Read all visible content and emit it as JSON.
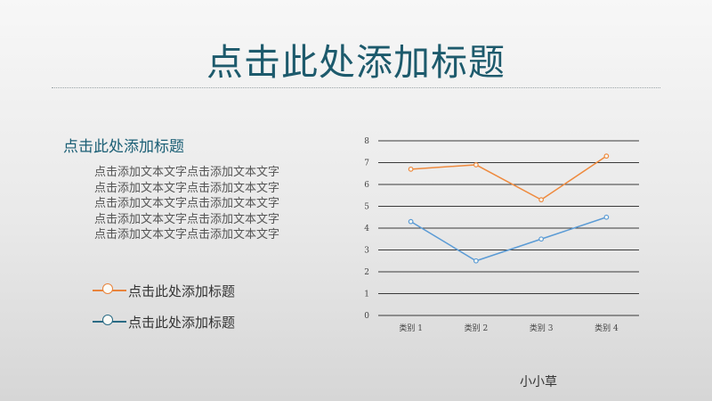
{
  "slide": {
    "title": "点击此处添加标题",
    "subheading": "点击此处添加标题",
    "body_lines": [
      "点击添加文本文字点击添加文本文字",
      "点击添加文本文字点击添加文本文字",
      "点击添加文本文字点击添加文本文字",
      "点击添加文本文字点击添加文本文字",
      "点击添加文本文字点击添加文本文字"
    ],
    "legend": [
      {
        "label": "点击此处添加标题",
        "color": "#e9843c"
      },
      {
        "label": "点击此处添加标题",
        "color": "#2a6b85"
      }
    ],
    "author": "小小草"
  },
  "chart_data": {
    "type": "line",
    "categories": [
      "类别 1",
      "类别 2",
      "类别 3",
      "类别 4"
    ],
    "series": [
      {
        "values": [
          6.7,
          6.9,
          5.3,
          7.3
        ],
        "color": "#ee8a3e"
      },
      {
        "values": [
          4.3,
          2.5,
          3.5,
          4.5
        ],
        "color": "#5b9bd5"
      }
    ],
    "ylim": [
      0,
      8
    ],
    "yticks": [
      "0",
      "1",
      "2",
      "3",
      "4",
      "5",
      "6",
      "7",
      "8"
    ],
    "grid": true,
    "title": "",
    "xlabel": "",
    "ylabel": ""
  }
}
